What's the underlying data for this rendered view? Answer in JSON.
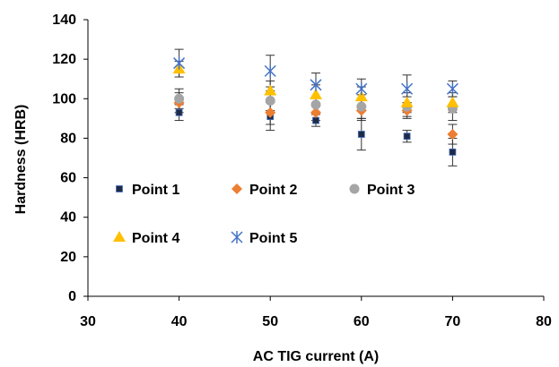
{
  "chart_data": {
    "type": "scatter",
    "title": "",
    "xlabel": "AC TIG current (A)",
    "ylabel": "Hardness (HRB)",
    "xlim": [
      30,
      80
    ],
    "ylim": [
      0,
      140
    ],
    "x_ticks": [
      "30",
      "40",
      "50",
      "60",
      "70",
      "80"
    ],
    "y_ticks": [
      "0",
      "20",
      "40",
      "60",
      "80",
      "100",
      "120",
      "140"
    ],
    "grid": false,
    "legend_position": "inside, lower-left",
    "series": [
      {
        "name": "Point 1",
        "marker": "square",
        "color": "#1f2a44",
        "x": [
          40,
          50,
          55,
          60,
          65,
          70
        ],
        "y": [
          93,
          91,
          89,
          82,
          81,
          73
        ],
        "err": [
          4,
          7,
          3,
          8,
          3,
          7
        ]
      },
      {
        "name": "Point 2",
        "marker": "diamond",
        "color": "#ed7d31",
        "x": [
          40,
          50,
          55,
          60,
          65,
          70
        ],
        "y": [
          98,
          93,
          93,
          94,
          94,
          82
        ],
        "err": [
          5,
          6,
          4,
          5,
          4,
          5
        ]
      },
      {
        "name": "Point 3",
        "marker": "circle",
        "color": "#a5a5a5",
        "x": [
          40,
          50,
          55,
          60,
          65,
          70
        ],
        "y": [
          100,
          99,
          97,
          96,
          96,
          95
        ],
        "err": [
          5,
          5,
          4,
          6,
          5,
          6
        ]
      },
      {
        "name": "Point 4",
        "marker": "triangle",
        "color": "#ffc000",
        "x": [
          40,
          50,
          55,
          60,
          65,
          70
        ],
        "y": [
          115,
          104,
          102,
          101,
          98,
          98
        ],
        "err": [
          4,
          5,
          5,
          5,
          5,
          5
        ]
      },
      {
        "name": "Point 5",
        "marker": "asterisk",
        "color": "#4472c4",
        "x": [
          40,
          50,
          55,
          60,
          65,
          70
        ],
        "y": [
          118,
          114,
          107,
          105,
          105,
          105
        ],
        "err": [
          7,
          8,
          6,
          5,
          7,
          4
        ]
      }
    ]
  }
}
